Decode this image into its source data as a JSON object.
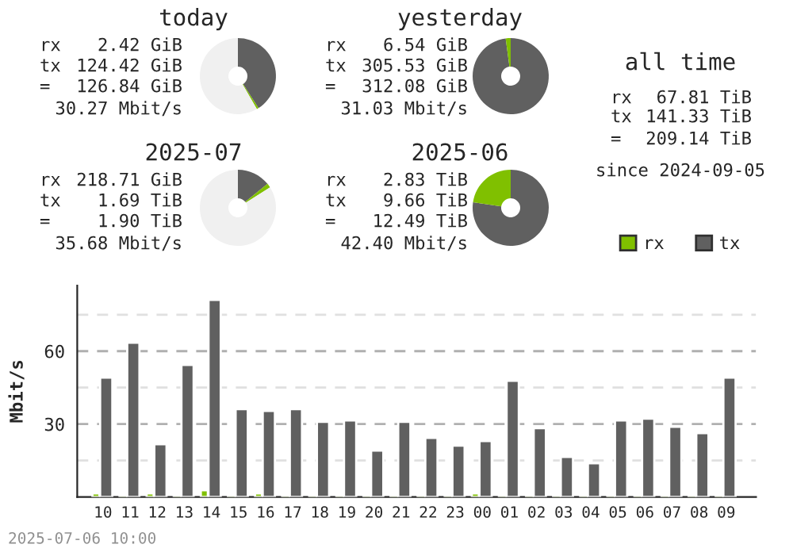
{
  "chart_data": [
    {
      "type": "donut",
      "title": "today",
      "categories": [
        null,
        null,
        null
      ],
      "values": [
        40.9,
        0.8,
        58.3
      ],
      "colors": [
        "#606060",
        "#80c000",
        "#f0f0f0"
      ],
      "annotations": [
        "rx",
        "2.42 GiB",
        "tx",
        "124.42 GiB",
        "=",
        "126.84 GiB",
        "30.27 Mbit/s"
      ]
    },
    {
      "type": "donut",
      "title": "yesterday",
      "categories": [
        null,
        null
      ],
      "values": [
        97.9,
        2.1
      ],
      "colors": [
        "#606060",
        "#80c000"
      ],
      "annotations": [
        "rx",
        "6.54 GiB",
        "tx",
        "305.53 GiB",
        "=",
        "312.08 GiB",
        "31.03 Mbit/s"
      ]
    },
    {
      "type": "other",
      "title": "all time",
      "annotations": [
        "rx",
        "67.81 TiB",
        "tx",
        "141.33 TiB",
        "=",
        "209.14 TiB",
        "since 2024-09-05"
      ]
    },
    {
      "type": "donut",
      "title": "2025-07",
      "categories": [
        null,
        null,
        null
      ],
      "values": [
        14.2,
        1.8,
        84.0
      ],
      "colors": [
        "#606060",
        "#80c000",
        "#f0f0f0"
      ],
      "annotations": [
        "rx",
        "218.71 GiB",
        "tx",
        "1.69 TiB",
        "=",
        "1.90 TiB",
        "35.68 Mbit/s"
      ]
    },
    {
      "type": "donut",
      "title": "2025-06",
      "categories": [
        null,
        null
      ],
      "values": [
        77.3,
        22.7
      ],
      "colors": [
        "#606060",
        "#80c000"
      ],
      "annotations": [
        "rx",
        "2.83 TiB",
        "tx",
        "9.66 TiB",
        "=",
        "12.49 TiB",
        "42.40 Mbit/s"
      ]
    },
    {
      "type": "bar",
      "ylabel": "Mbit/s",
      "categories": [
        "10",
        "11",
        "12",
        "13",
        "14",
        "15",
        "16",
        "17",
        "18",
        "19",
        "20",
        "21",
        "22",
        "23",
        "00",
        "01",
        "02",
        "03",
        "04",
        "05",
        "06",
        "07",
        "08",
        "09"
      ],
      "series": [
        {
          "name": "rx",
          "color": "#80c000",
          "values": [
            1.5,
            0.8,
            1.5,
            0.8,
            2.8,
            0.8,
            1.5,
            0.8,
            0.8,
            0.8,
            0.8,
            0.8,
            0.8,
            0.3,
            1.5,
            0.8,
            0.8,
            0.3,
            0.3,
            0.8,
            0.8,
            0.5,
            0.8,
            0.8
          ]
        },
        {
          "name": "tx",
          "color": "#606060",
          "values": [
            49.1,
            63.5,
            21.7,
            54.3,
            81.1,
            36.1,
            35.4,
            36.1,
            30.9,
            31.5,
            19.1,
            30.9,
            24.3,
            21.1,
            23.0,
            47.8,
            28.3,
            16.5,
            13.9,
            31.5,
            32.2,
            28.9,
            26.3,
            49.1
          ]
        }
      ],
      "ylim": [
        0,
        87
      ],
      "yticks": [
        {
          "value": 15,
          "label": null
        },
        30,
        {
          "value": 45,
          "label": null
        },
        60,
        {
          "value": 75,
          "label": null
        }
      ],
      "grid": "y",
      "legend": "top right",
      "annotations": [
        "2025-07-06 10:00"
      ]
    }
  ]
}
